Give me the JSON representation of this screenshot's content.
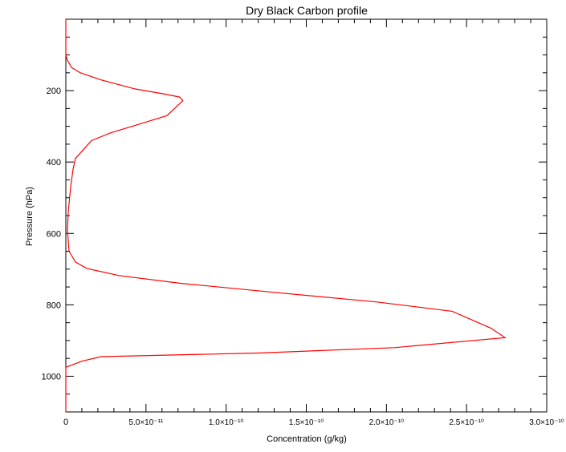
{
  "chart_data": {
    "type": "line",
    "title": "Dry Black Carbon profile",
    "xlabel": "Concentration (g/kg)",
    "ylabel": "Pressure (hPa)",
    "xlim": [
      0,
      3e-10
    ],
    "ylim": [
      1100,
      0
    ],
    "y_inverted": true,
    "x_major_ticks": [
      0,
      5e-11,
      1e-10,
      1.5e-10,
      2e-10,
      2.5e-10,
      3e-10
    ],
    "x_tick_labels": [
      "0",
      "5.0×10⁻¹¹",
      "1.0×10⁻¹⁰",
      "1.5×10⁻¹⁰",
      "2.0×10⁻¹⁰",
      "2.5×10⁻¹⁰",
      "3.0×10⁻¹⁰"
    ],
    "y_major_ticks": [
      200,
      400,
      600,
      800,
      1000
    ],
    "y_tick_labels": [
      "200",
      "400",
      "600",
      "800",
      "1000"
    ],
    "grid": false,
    "series_color": "#ff0000",
    "series": [
      {
        "points": [
          [
            0,
            0
          ],
          [
            0,
            100
          ],
          [
            1e-12,
            115
          ],
          [
            3.5e-12,
            135
          ],
          [
            9e-12,
            150
          ],
          [
            2.2e-11,
            170
          ],
          [
            4.3e-11,
            195
          ],
          [
            6.2e-11,
            210
          ],
          [
            7.1e-11,
            218
          ],
          [
            7.3e-11,
            228
          ],
          [
            6.3e-11,
            270
          ],
          [
            4.5e-11,
            295
          ],
          [
            2.8e-11,
            318
          ],
          [
            1.6e-11,
            340
          ],
          [
            1e-11,
            370
          ],
          [
            6e-12,
            390
          ],
          [
            4.5e-12,
            420
          ],
          [
            3e-12,
            470
          ],
          [
            1.5e-12,
            540
          ],
          [
            1e-12,
            590
          ],
          [
            2e-12,
            650
          ],
          [
            6e-12,
            680
          ],
          [
            1.3e-11,
            698
          ],
          [
            3.3e-11,
            718
          ],
          [
            7.2e-11,
            740
          ],
          [
            1.3e-10,
            765
          ],
          [
            1.94e-10,
            792
          ],
          [
            2.41e-10,
            818
          ],
          [
            2.65e-10,
            865
          ],
          [
            2.74e-10,
            892
          ],
          [
            2.05e-10,
            920
          ],
          [
            1.2e-10,
            935
          ],
          [
            2.2e-11,
            945
          ],
          [
            1e-11,
            958
          ],
          [
            0,
            975
          ],
          [
            0,
            1100
          ]
        ]
      }
    ]
  }
}
